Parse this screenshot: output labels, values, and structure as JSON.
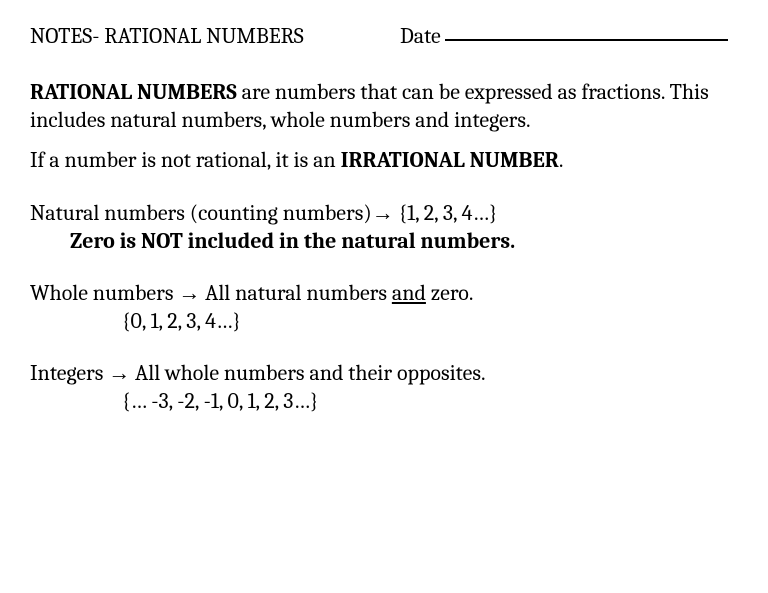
{
  "header": {
    "title": "NOTES- RATIONAL NUMBERS",
    "date_label": "Date"
  },
  "body": {
    "def_bold": "RATIONAL NUMBERS",
    "def_rest": " are numbers that can be expressed as fractions. This includes natural numbers, whole numbers and integers.",
    "irr_pre": "If a number is not rational, it is an ",
    "irr_bold": "IRRATIONAL NUMBER",
    "irr_post": ".",
    "natural_pre": "Natural numbers (counting numbers)",
    "arrow": "→",
    "natural_set": " {1, 2, 3, 4…}",
    "natural_note": "Zero is NOT included in the natural numbers.",
    "whole_pre": "Whole numbers ",
    "whole_post_a": " All natural numbers ",
    "whole_and": "and",
    "whole_post_b": " zero.",
    "whole_set": "{0, 1, 2, 3, 4…}",
    "integers_pre": "Integers ",
    "integers_post": " All whole numbers and their opposites.",
    "integers_set": "{… -3, -2, -1, 0, 1, 2, 3…}"
  },
  "style": {
    "background_color": "#ffffff",
    "text_color": "#000000",
    "font_family": "Cambria, Georgia, serif",
    "base_fontsize_pt": 17,
    "title_weight": "normal",
    "bold_weight": "bold"
  }
}
